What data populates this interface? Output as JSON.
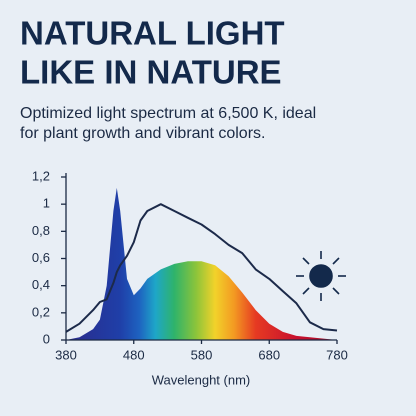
{
  "chart_data": {
    "type": "spectrum",
    "title": [
      "NATURAL LIGHT",
      "LIKE IN NATURE"
    ],
    "subtitle": [
      "Optimized light spectrum at 6,500 K, ideal",
      "for plant growth and vibrant colors."
    ],
    "x_label": "Wavelenght (nm)",
    "x": [
      380,
      400,
      420,
      430,
      440,
      450,
      455,
      460,
      470,
      480,
      490,
      500,
      520,
      540,
      560,
      580,
      600,
      620,
      640,
      660,
      680,
      700,
      720,
      740,
      760,
      780
    ],
    "series": [
      {
        "values": [
          0.0,
          0.02,
          0.08,
          0.15,
          0.4,
          0.95,
          1.12,
          0.95,
          0.45,
          0.33,
          0.38,
          0.45,
          0.52,
          0.56,
          0.58,
          0.58,
          0.55,
          0.47,
          0.35,
          0.22,
          0.12,
          0.06,
          0.03,
          0.02,
          0.01,
          0.0
        ]
      },
      {
        "color": "#1c2a4a",
        "values": [
          0.06,
          0.12,
          0.22,
          0.28,
          0.3,
          0.42,
          0.5,
          0.55,
          0.62,
          0.72,
          0.88,
          0.95,
          1.0,
          0.95,
          0.9,
          0.85,
          0.78,
          0.7,
          0.64,
          0.52,
          0.45,
          0.36,
          0.27,
          0.13,
          0.08,
          0.07
        ]
      }
    ],
    "xlim": [
      380,
      780
    ],
    "ylim": [
      0,
      1.2
    ],
    "xticks": [
      380,
      480,
      580,
      680,
      780
    ],
    "yticks": [
      0,
      {
        "value": 0.2,
        "label": "0,2"
      },
      {
        "value": 0.4,
        "label": "0,4"
      },
      {
        "value": 0.6,
        "label": "0,6"
      },
      {
        "value": 0.8,
        "label": "0,8"
      },
      1,
      {
        "value": 1.2,
        "label": "1,2"
      }
    ]
  }
}
